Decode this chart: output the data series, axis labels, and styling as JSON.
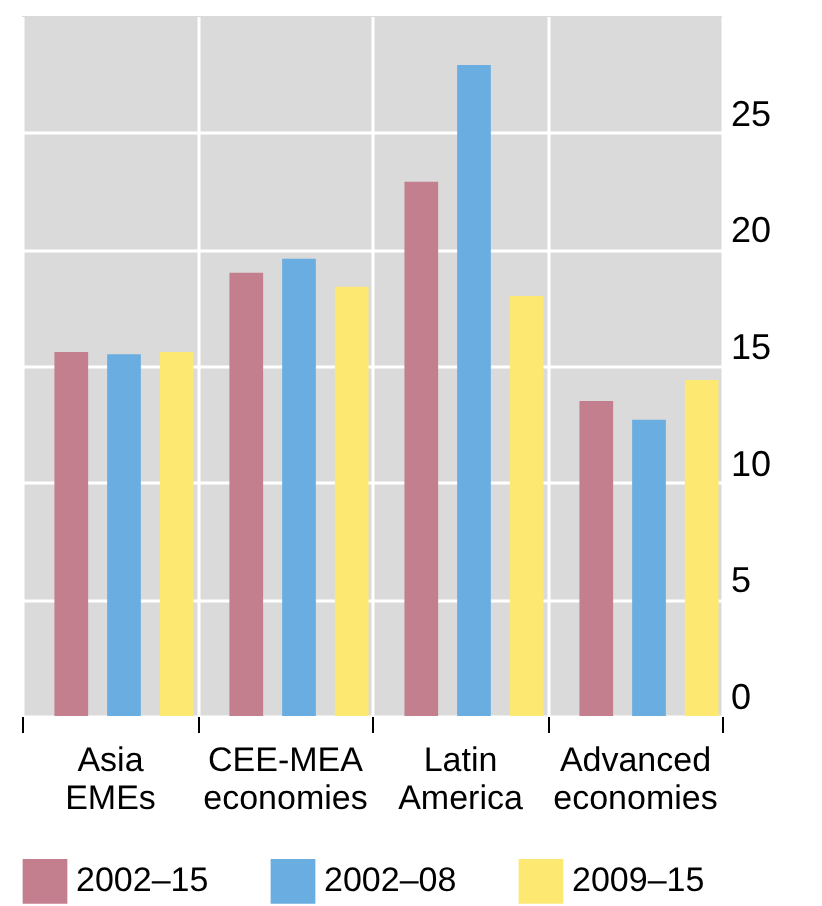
{
  "chart_data": {
    "type": "bar",
    "categories": [
      "Asia EMEs",
      "CEE-MEA economies",
      "Latin America",
      "Advanced economies"
    ],
    "series": [
      {
        "name": "2002–15",
        "color": "#c47f8f",
        "values": [
          15.6,
          19.0,
          22.9,
          13.5
        ]
      },
      {
        "name": "2002–08",
        "color": "#6aade0",
        "values": [
          15.5,
          19.6,
          27.9,
          12.7
        ]
      },
      {
        "name": "2009–15",
        "color": "#fde872",
        "values": [
          15.6,
          18.4,
          18.0,
          14.4
        ]
      }
    ],
    "ylim": [
      0,
      30
    ],
    "yticks": [
      0,
      5,
      10,
      15,
      20,
      25
    ],
    "grid": true,
    "legend": "bottom"
  }
}
